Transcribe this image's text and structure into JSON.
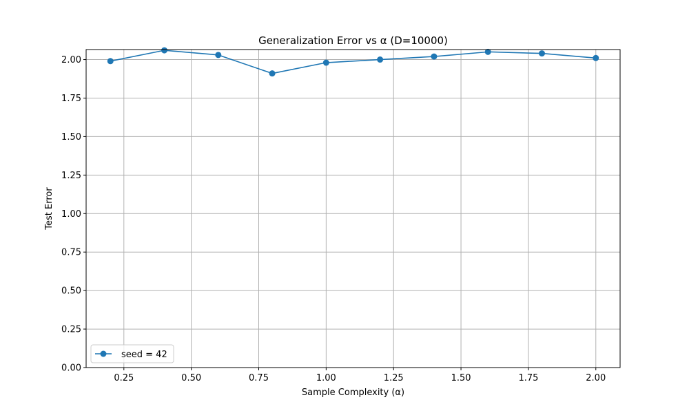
{
  "chart_data": {
    "type": "line",
    "title": "Generalization Error vs α (D=10000)",
    "xlabel": "Sample Complexity (α)",
    "ylabel": "Test Error",
    "xlim": [
      0.11,
      2.09
    ],
    "ylim": [
      0.0,
      2.065
    ],
    "xticks": [
      0.25,
      0.5,
      0.75,
      1.0,
      1.25,
      1.5,
      1.75,
      2.0
    ],
    "xtick_labels": [
      "0.25",
      "0.50",
      "0.75",
      "1.00",
      "1.25",
      "1.50",
      "1.75",
      "2.00"
    ],
    "yticks": [
      0.0,
      0.25,
      0.5,
      0.75,
      1.0,
      1.25,
      1.5,
      1.75,
      2.0
    ],
    "ytick_labels": [
      "0.00",
      "0.25",
      "0.50",
      "0.75",
      "1.00",
      "1.25",
      "1.50",
      "1.75",
      "2.00"
    ],
    "grid": true,
    "legend_position": "lower-left",
    "x": [
      0.2,
      0.4,
      0.6,
      0.8,
      1.0,
      1.2,
      1.4,
      1.6,
      1.8,
      2.0
    ],
    "series": [
      {
        "name": "seed = 42",
        "color": "#1f77b4",
        "marker": "circle",
        "values": [
          1.99,
          2.06,
          2.03,
          1.91,
          1.98,
          2.0,
          2.02,
          2.05,
          2.04,
          2.01
        ]
      }
    ]
  }
}
